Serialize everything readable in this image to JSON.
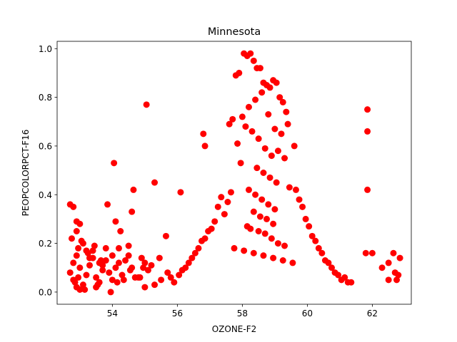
{
  "chart_data": {
    "type": "scatter",
    "title": "Minnesota",
    "xlabel": "OZONE-F2",
    "ylabel": "PEOPCOLORPCT-F16",
    "xlim": [
      52.3,
      63.2
    ],
    "ylim": [
      -0.05,
      1.03
    ],
    "x_ticks": [
      54,
      56,
      58,
      60,
      62
    ],
    "y_ticks": [
      0.0,
      0.2,
      0.4,
      0.6,
      0.8,
      1.0
    ],
    "x_tick_labels": [
      "54",
      "56",
      "58",
      "60",
      "62"
    ],
    "y_tick_labels": [
      "0.0",
      "0.2",
      "0.4",
      "0.6",
      "0.8",
      "1.0"
    ],
    "marker_color": "#ff0000",
    "grid": false,
    "series": [
      {
        "x": [
          52.7,
          52.8,
          52.9,
          52.95,
          53.0,
          52.8,
          52.9,
          53.1,
          53.2,
          53.3,
          53.4,
          53.5,
          53.6,
          53.7,
          53.8,
          53.9,
          54.0,
          54.1,
          54.2,
          54.3,
          54.5,
          54.7,
          54.9,
          55.1,
          55.3,
          55.5,
          55.7,
          55.9,
          52.7,
          52.8,
          52.9,
          53.0,
          53.1,
          53.2,
          53.4,
          53.6,
          53.8,
          54.0,
          54.2,
          54.4,
          54.6,
          54.8,
          55.0,
          52.9,
          53.3,
          53.7,
          54.1,
          54.5,
          53.0,
          53.5,
          53.85,
          54.05,
          54.25,
          54.6,
          54.65,
          55.05,
          55.3,
          55.65,
          56.1,
          56.8,
          56.85,
          61.85,
          61.85,
          61.85,
          61.8,
          62.0,
          62.3,
          62.5,
          62.5,
          62.65,
          62.7,
          62.75,
          62.85,
          62.8,
          52.85,
          52.95,
          53.15,
          53.55,
          53.95,
          54.15,
          54.35,
          54.85,
          55.0,
          55.2,
          55.45,
          55.8,
          52.75,
          53.05,
          53.25,
          53.45,
          53.65,
          54.55,
          54.95
        ],
        "y": [
          0.08,
          0.12,
          0.15,
          0.18,
          0.1,
          0.05,
          0.02,
          0.03,
          0.07,
          0.11,
          0.14,
          0.06,
          0.04,
          0.09,
          0.13,
          0.08,
          0.05,
          0.1,
          0.12,
          0.07,
          0.15,
          0.06,
          0.14,
          0.09,
          0.03,
          0.05,
          0.08,
          0.04,
          0.36,
          0.35,
          0.29,
          0.28,
          0.2,
          0.17,
          0.17,
          0.12,
          0.18,
          0.15,
          0.18,
          0.13,
          0.1,
          0.06,
          0.12,
          0.25,
          0.14,
          0.11,
          0.29,
          0.19,
          0.01,
          0.02,
          0.36,
          0.53,
          0.25,
          0.33,
          0.42,
          0.77,
          0.45,
          0.23,
          0.41,
          0.65,
          0.6,
          0.75,
          0.66,
          0.42,
          0.16,
          0.16,
          0.1,
          0.12,
          0.05,
          0.16,
          0.08,
          0.05,
          0.14,
          0.07,
          0.04,
          0.06,
          0.01,
          0.03,
          0.0,
          0.04,
          0.05,
          0.06,
          0.02,
          0.11,
          0.14,
          0.06,
          0.22,
          0.21,
          0.16,
          0.19,
          0.13,
          0.09,
          0.1
        ]
      },
      {
        "x": [
          57.8,
          57.9,
          58.05,
          58.15,
          58.25,
          58.35,
          58.45,
          58.55,
          58.65,
          58.75,
          58.85,
          58.95,
          59.05,
          59.15,
          59.25,
          59.35,
          57.6,
          57.7,
          58.0,
          58.2,
          58.4,
          58.6,
          58.8,
          59.0,
          59.2,
          59.4,
          59.6,
          57.85,
          58.1,
          58.3,
          58.5,
          58.7,
          58.9,
          59.1,
          59.3,
          57.95,
          58.45,
          58.65,
          58.85,
          59.05,
          59.45,
          58.2,
          58.4,
          58.6,
          58.8,
          59.0,
          58.35,
          58.55,
          58.75,
          58.95,
          58.15,
          58.25,
          58.5,
          58.7,
          58.9,
          59.1,
          59.3,
          57.75,
          58.05,
          58.35,
          58.65,
          58.95,
          59.25,
          59.55,
          57.65,
          57.55,
          57.45,
          59.65,
          59.75,
          59.85,
          59.95,
          60.05,
          60.15,
          60.25,
          60.35,
          60.45,
          60.55,
          60.65,
          60.75,
          60.85,
          60.95,
          61.05,
          61.15,
          61.25,
          61.35,
          57.35,
          57.25,
          57.15,
          57.05,
          56.95,
          56.85,
          56.75,
          56.65,
          56.55,
          56.45,
          56.35,
          56.25,
          56.15,
          56.05
        ],
        "y": [
          0.89,
          0.9,
          0.98,
          0.97,
          0.98,
          0.95,
          0.92,
          0.92,
          0.86,
          0.85,
          0.84,
          0.87,
          0.86,
          0.8,
          0.78,
          0.74,
          0.69,
          0.71,
          0.72,
          0.76,
          0.79,
          0.82,
          0.73,
          0.67,
          0.65,
          0.69,
          0.6,
          0.61,
          0.68,
          0.66,
          0.63,
          0.59,
          0.56,
          0.58,
          0.55,
          0.53,
          0.51,
          0.49,
          0.47,
          0.45,
          0.43,
          0.42,
          0.4,
          0.38,
          0.36,
          0.34,
          0.33,
          0.31,
          0.3,
          0.28,
          0.27,
          0.26,
          0.25,
          0.24,
          0.22,
          0.2,
          0.19,
          0.18,
          0.17,
          0.16,
          0.15,
          0.14,
          0.13,
          0.12,
          0.41,
          0.37,
          0.32,
          0.42,
          0.38,
          0.35,
          0.3,
          0.27,
          0.23,
          0.21,
          0.18,
          0.16,
          0.13,
          0.12,
          0.1,
          0.08,
          0.07,
          0.05,
          0.06,
          0.04,
          0.04,
          0.39,
          0.35,
          0.29,
          0.26,
          0.25,
          0.22,
          0.21,
          0.18,
          0.16,
          0.14,
          0.12,
          0.1,
          0.09,
          0.07
        ]
      }
    ]
  }
}
